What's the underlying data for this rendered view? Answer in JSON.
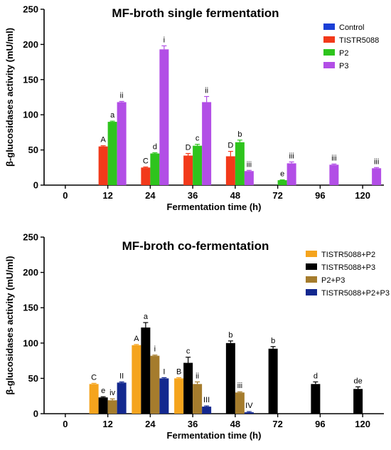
{
  "chart_data": [
    {
      "type": "bar",
      "title": "MF-broth single fermentation",
      "xlabel": "Fermentation time (h)",
      "ylabel": "β-glucosidases activity  (mU/ml)",
      "categories": [
        "0",
        "12",
        "24",
        "36",
        "48",
        "72",
        "96",
        "120"
      ],
      "yticks": [
        "0",
        "50",
        "100",
        "150",
        "200",
        "250"
      ],
      "ylim": [
        0,
        250
      ],
      "legend_position": "top-right",
      "series": [
        {
          "name": "Control",
          "color": "#1a3fd6",
          "values": [
            0,
            0,
            0,
            0,
            0,
            0,
            0,
            0
          ],
          "errors": [
            0,
            0,
            0,
            0,
            0,
            0,
            0,
            0
          ],
          "labels": [
            "",
            "",
            "",
            "",
            "",
            "",
            "",
            ""
          ]
        },
        {
          "name": "TISTR5088",
          "color": "#f2391a",
          "values": [
            0,
            55,
            25,
            42,
            41,
            0,
            0,
            0
          ],
          "errors": [
            0,
            1,
            0.8,
            3,
            7,
            0,
            0,
            0
          ],
          "labels": [
            "",
            "A",
            "C",
            "D",
            "D",
            "",
            "",
            ""
          ]
        },
        {
          "name": "P2",
          "color": "#2ec41d",
          "values": [
            0,
            90,
            45,
            56,
            61,
            7,
            0,
            0
          ],
          "errors": [
            0,
            1,
            1,
            2,
            3,
            0.5,
            0,
            0
          ],
          "labels": [
            "",
            "a",
            "d",
            "c",
            "b",
            "e",
            "",
            ""
          ]
        },
        {
          "name": "P3",
          "color": "#b24ee6",
          "values": [
            0,
            118,
            193,
            118,
            20,
            31,
            29,
            24
          ],
          "errors": [
            0,
            1,
            5,
            8,
            1,
            2,
            1,
            1
          ],
          "labels": [
            "",
            "ii",
            "i",
            "ii",
            "iii",
            "iii",
            "iii",
            "iii"
          ]
        }
      ]
    },
    {
      "type": "bar",
      "title": "MF-broth co-fermentation",
      "xlabel": "Fermentation time (h)",
      "ylabel": "β-glucosidases activity  (mU/ml)",
      "categories": [
        "0",
        "12",
        "24",
        "36",
        "48",
        "72",
        "96",
        "120"
      ],
      "yticks": [
        "0",
        "50",
        "100",
        "150",
        "200",
        "250"
      ],
      "ylim": [
        0,
        250
      ],
      "legend_position": "top-right",
      "series": [
        {
          "name": "TISTR5088+P2",
          "color": "#f5a41d",
          "values": [
            0,
            42,
            97,
            50,
            0,
            0,
            0,
            0
          ],
          "errors": [
            0,
            1,
            1,
            1,
            0,
            0,
            0,
            0
          ],
          "labels": [
            "",
            "C",
            "A",
            "B",
            "",
            "",
            "",
            ""
          ]
        },
        {
          "name": "TISTR5088+P3",
          "color": "#000000",
          "values": [
            0,
            23,
            122,
            72,
            100,
            92,
            42,
            35
          ],
          "errors": [
            0,
            1,
            7,
            8,
            3,
            3,
            3,
            3
          ],
          "labels": [
            "",
            "e",
            "a",
            "c",
            "b",
            "b",
            "d",
            "de"
          ]
        },
        {
          "name": "P2+P3",
          "color": "#a57c2d",
          "values": [
            0,
            19,
            82,
            42,
            30,
            0,
            0,
            0
          ],
          "errors": [
            0,
            2,
            1,
            3,
            1,
            0,
            0,
            0
          ],
          "labels": [
            "",
            "iv",
            "i",
            "ii",
            "iii",
            "",
            "",
            ""
          ]
        },
        {
          "name": "TISTR5088+P2+P3",
          "color": "#13288f",
          "values": [
            0,
            44,
            50,
            10,
            2,
            0,
            0,
            0
          ],
          "errors": [
            0,
            1,
            1,
            1,
            1,
            0,
            0,
            0
          ],
          "labels": [
            "",
            "II",
            "I",
            "III",
            "IV",
            "",
            "",
            ""
          ]
        }
      ]
    }
  ]
}
